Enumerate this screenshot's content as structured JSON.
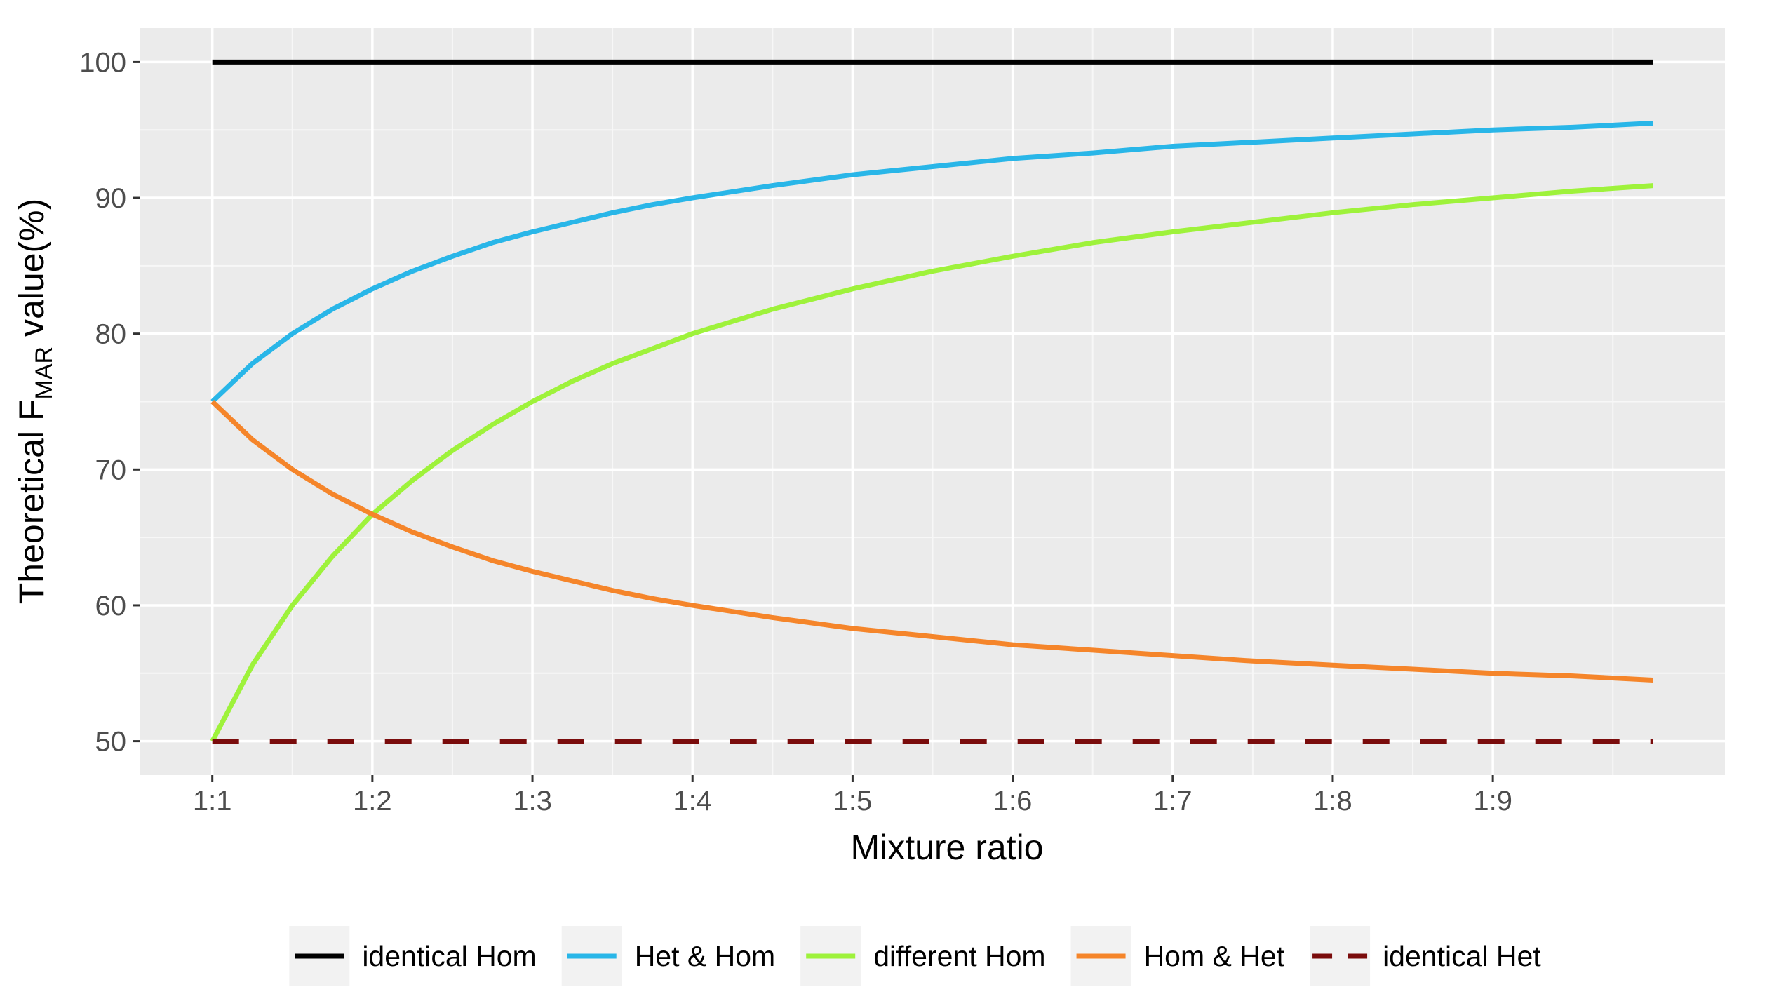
{
  "chart_data": {
    "type": "line",
    "title": "",
    "xlabel": "Mixture ratio",
    "ylabel": {
      "prefix": "Theoretical F",
      "subscript": "MAR",
      "suffix": " value(%)"
    },
    "x_tick_labels": [
      "1:1",
      "1:2",
      "1:3",
      "1:4",
      "1:5",
      "1:6",
      "1:7",
      "1:8",
      "1:9"
    ],
    "x_tick_positions": [
      1,
      2,
      3,
      4,
      5,
      6,
      7,
      8,
      9
    ],
    "xlim": [
      0.55,
      10.45
    ],
    "ylim": [
      47.5,
      102.5
    ],
    "y_ticks": [
      50,
      60,
      70,
      80,
      90,
      100
    ],
    "y_tick_labels": [
      "50",
      "60",
      "70",
      "80",
      "90",
      "100"
    ],
    "grid": true,
    "legend_position": "bottom",
    "series": [
      {
        "name": "identical Hom",
        "color": "#000000",
        "dash": "solid",
        "x": [
          1,
          10
        ],
        "y": [
          100,
          100
        ]
      },
      {
        "name": "Het & Hom",
        "color": "#29b6e8",
        "dash": "solid",
        "x": [
          1,
          1.25,
          1.5,
          1.75,
          2,
          2.25,
          2.5,
          2.75,
          3,
          3.25,
          3.5,
          3.75,
          4,
          4.5,
          5,
          5.5,
          6,
          6.5,
          7,
          7.5,
          8,
          8.5,
          9,
          9.5,
          10
        ],
        "y": [
          75,
          77.8,
          80,
          81.8,
          83.3,
          84.6,
          85.7,
          86.7,
          87.5,
          88.2,
          88.9,
          89.5,
          90,
          90.9,
          91.7,
          92.3,
          92.9,
          93.3,
          93.8,
          94.1,
          94.4,
          94.7,
          95,
          95.2,
          95.5
        ]
      },
      {
        "name": "different Hom",
        "color": "#9ef23b",
        "dash": "solid",
        "x": [
          1,
          1.25,
          1.5,
          1.75,
          2,
          2.25,
          2.5,
          2.75,
          3,
          3.25,
          3.5,
          3.75,
          4,
          4.5,
          5,
          5.5,
          6,
          6.5,
          7,
          7.5,
          8,
          8.5,
          9,
          9.5,
          10
        ],
        "y": [
          50,
          55.6,
          60,
          63.6,
          66.7,
          69.2,
          71.4,
          73.3,
          75,
          76.5,
          77.8,
          78.9,
          80,
          81.8,
          83.3,
          84.6,
          85.7,
          86.7,
          87.5,
          88.2,
          88.9,
          89.5,
          90,
          90.5,
          90.9
        ]
      },
      {
        "name": "Hom & Het",
        "color": "#f5852a",
        "dash": "solid",
        "x": [
          1,
          1.25,
          1.5,
          1.75,
          2,
          2.25,
          2.5,
          2.75,
          3,
          3.25,
          3.5,
          3.75,
          4,
          4.5,
          5,
          5.5,
          6,
          6.5,
          7,
          7.5,
          8,
          8.5,
          9,
          9.5,
          10
        ],
        "y": [
          75,
          72.2,
          70,
          68.2,
          66.7,
          65.4,
          64.3,
          63.3,
          62.5,
          61.8,
          61.1,
          60.5,
          60,
          59.1,
          58.3,
          57.7,
          57.1,
          56.7,
          56.3,
          55.9,
          55.6,
          55.3,
          55,
          54.8,
          54.5
        ]
      },
      {
        "name": "identical Het",
        "color": "#7a0c0c",
        "dash": "dashed",
        "x": [
          1,
          10
        ],
        "y": [
          50,
          50
        ]
      }
    ]
  }
}
